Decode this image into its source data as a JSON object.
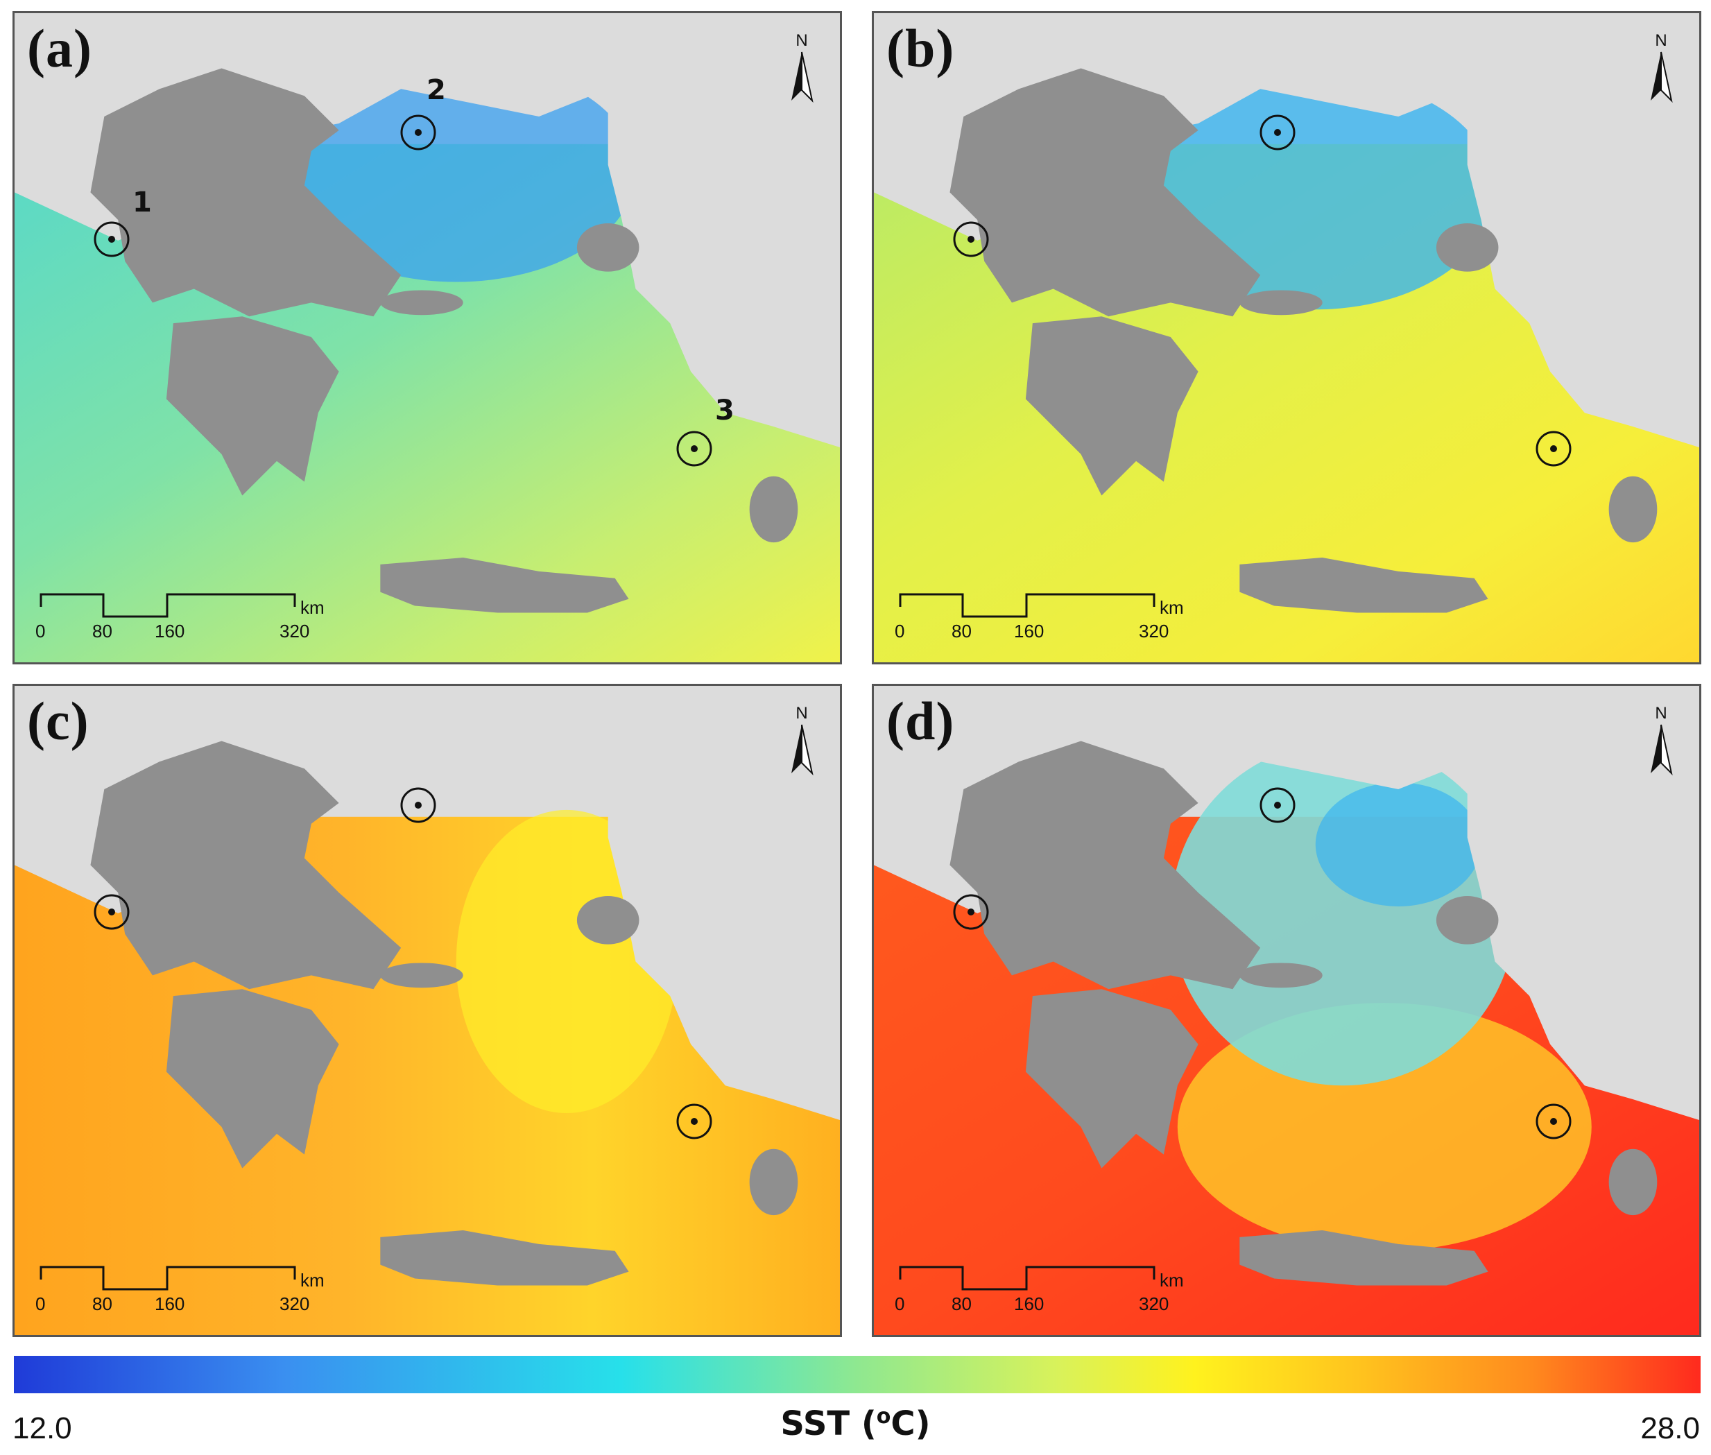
{
  "panels": [
    {
      "label": "(a)",
      "sea_gradient": [
        "#58d8c8",
        "#7fe2a8",
        "#c8ee70",
        "#f0f24a"
      ],
      "north_sea": "#3aa0f0",
      "markers": [
        "1",
        "2",
        "3"
      ]
    },
    {
      "label": "(b)",
      "sea_gradient": [
        "#b8ea66",
        "#e2f04a",
        "#f6ee3a",
        "#ffd830"
      ],
      "north_sea": "#3ab4f0",
      "markers": []
    },
    {
      "label": "(c)",
      "sea_gradient": [
        "#ffa41e",
        "#ffb42a",
        "#ffcc2a",
        "#ffb020"
      ],
      "north_sea": "#ff9a1e",
      "markers": []
    },
    {
      "label": "(d)",
      "sea_gradient": [
        "#ff5a1e",
        "#ff4a1e",
        "#ff3a1e",
        "#ff2a1e"
      ],
      "north_sea": "#7fdcd8",
      "markers": []
    }
  ],
  "north_label": "N",
  "scalebar": {
    "ticks": [
      "0",
      "80",
      "160",
      "320"
    ],
    "unit": "km"
  },
  "colorbar": {
    "min": "12.0",
    "max": "28.0",
    "title": "SST (",
    "title_sup": "o",
    "title_end": "C)"
  }
}
